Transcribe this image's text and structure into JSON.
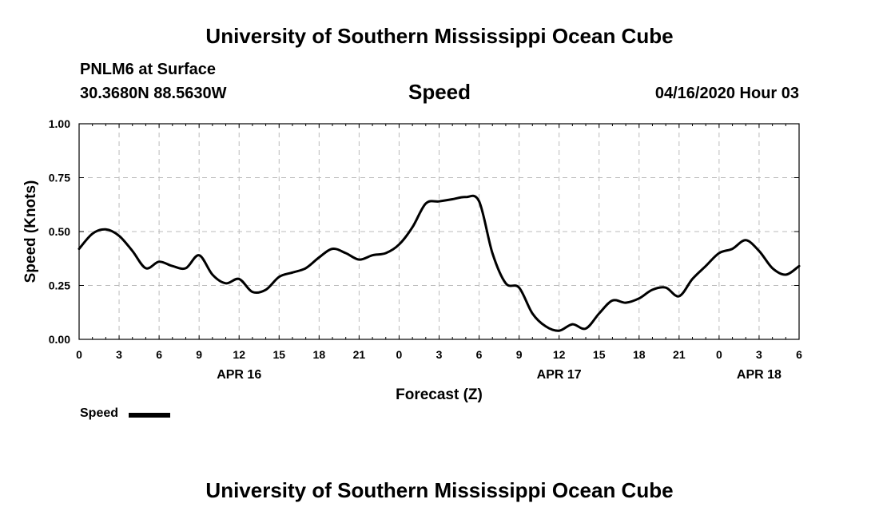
{
  "page": {
    "title_top": "University of Southern Mississippi Ocean Cube",
    "title_bottom": "University of Southern Mississippi Ocean Cube",
    "station": "PNLM6 at Surface",
    "coordinates": "30.3680N 88.5630W",
    "datetime": "04/16/2020 Hour 03"
  },
  "chart_data": {
    "type": "line",
    "title": "Speed",
    "xlabel": "Forecast (Z)",
    "ylabel": "Speed (Knots)",
    "xlim": [
      0,
      54
    ],
    "ylim": [
      0,
      1
    ],
    "grid": true,
    "xticks": [
      {
        "v": 0,
        "label": "0"
      },
      {
        "v": 3,
        "label": "3"
      },
      {
        "v": 6,
        "label": "6"
      },
      {
        "v": 9,
        "label": "9"
      },
      {
        "v": 12,
        "label": "12"
      },
      {
        "v": 15,
        "label": "15"
      },
      {
        "v": 18,
        "label": "18"
      },
      {
        "v": 21,
        "label": "21"
      },
      {
        "v": 24,
        "label": "0"
      },
      {
        "v": 27,
        "label": "3"
      },
      {
        "v": 30,
        "label": "6"
      },
      {
        "v": 33,
        "label": "9"
      },
      {
        "v": 36,
        "label": "12"
      },
      {
        "v": 39,
        "label": "15"
      },
      {
        "v": 42,
        "label": "18"
      },
      {
        "v": 45,
        "label": "21"
      },
      {
        "v": 48,
        "label": "0"
      },
      {
        "v": 51,
        "label": "3"
      },
      {
        "v": 54,
        "label": "6"
      }
    ],
    "yticks": [
      {
        "v": 0,
        "label": "0.00"
      },
      {
        "v": 0.25,
        "label": "0.25"
      },
      {
        "v": 0.5,
        "label": "0.50"
      },
      {
        "v": 0.75,
        "label": "0.75"
      },
      {
        "v": 1,
        "label": "1.00"
      }
    ],
    "day_labels": [
      {
        "v": 12,
        "label": "APR 16"
      },
      {
        "v": 36,
        "label": "APR 17"
      },
      {
        "v": 51,
        "label": "APR 18"
      }
    ],
    "legend": {
      "label": "Speed",
      "position": "bottom-left"
    },
    "series": [
      {
        "name": "Speed",
        "x": [
          0,
          1,
          2,
          3,
          4,
          5,
          6,
          7,
          8,
          9,
          10,
          11,
          12,
          13,
          14,
          15,
          16,
          17,
          18,
          19,
          20,
          21,
          22,
          23,
          24,
          25,
          26,
          27,
          28,
          29,
          30,
          31,
          32,
          33,
          34,
          35,
          36,
          37,
          38,
          39,
          40,
          41,
          42,
          43,
          44,
          45,
          46,
          47,
          48,
          49,
          50,
          51,
          52,
          53,
          54
        ],
        "values": [
          0.42,
          0.49,
          0.51,
          0.48,
          0.41,
          0.33,
          0.36,
          0.34,
          0.33,
          0.39,
          0.3,
          0.26,
          0.28,
          0.22,
          0.23,
          0.29,
          0.31,
          0.33,
          0.38,
          0.42,
          0.4,
          0.37,
          0.39,
          0.4,
          0.44,
          0.52,
          0.63,
          0.64,
          0.65,
          0.66,
          0.64,
          0.4,
          0.26,
          0.24,
          0.12,
          0.06,
          0.04,
          0.07,
          0.05,
          0.12,
          0.18,
          0.17,
          0.19,
          0.23,
          0.24,
          0.2,
          0.28,
          0.34,
          0.4,
          0.42,
          0.46,
          0.41,
          0.33,
          0.3,
          0.34
        ]
      }
    ]
  }
}
